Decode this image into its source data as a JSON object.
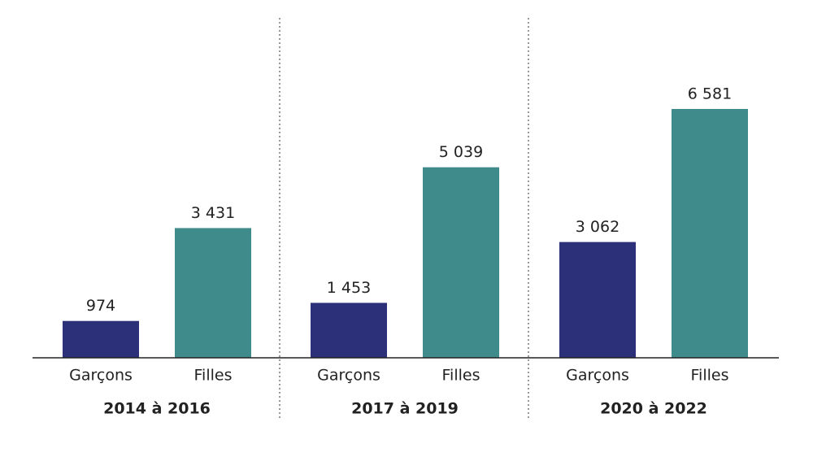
{
  "chart_data": {
    "type": "bar",
    "categories": [
      "2014 à 2016",
      "2017 à 2019",
      "2020 à 2022"
    ],
    "series": [
      {
        "name": "Garçons",
        "color": "#2b3078",
        "values": [
          974,
          1453,
          3062
        ],
        "value_labels": [
          "974",
          "1 453",
          "3 062"
        ]
      },
      {
        "name": "Filles",
        "color": "#3f8a8a",
        "values": [
          3431,
          5039,
          6581
        ],
        "value_labels": [
          "3 431",
          "5 039",
          "6 581"
        ]
      }
    ]
  }
}
